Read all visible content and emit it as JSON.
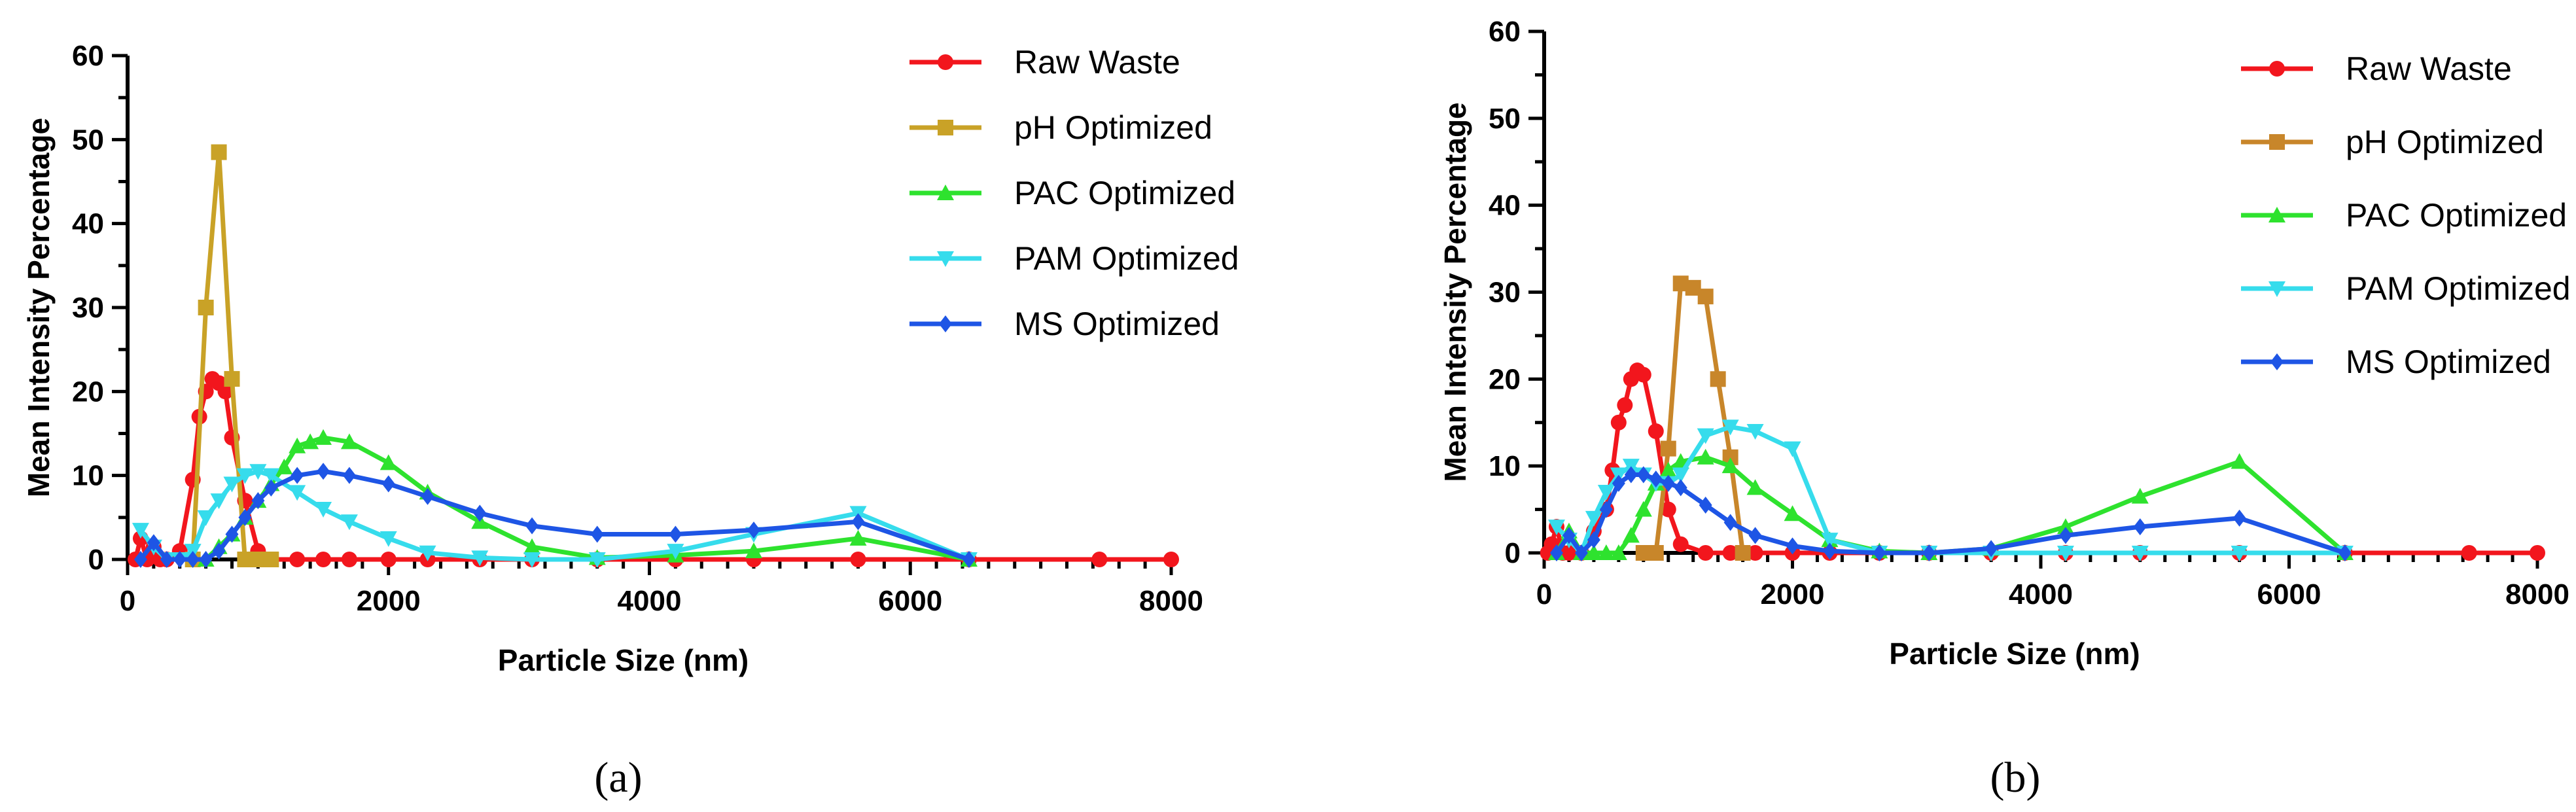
{
  "chart_data": [
    {
      "type": "line",
      "panel": "a",
      "panel_label": "(a)",
      "xlabel": "Particle Size (nm)",
      "ylabel": "Mean Intensity Percentage",
      "xlim": [
        0,
        8000
      ],
      "ylim": [
        0,
        60
      ],
      "xticks": [
        0,
        2000,
        4000,
        6000,
        8000
      ],
      "yticks": [
        0,
        10,
        20,
        30,
        40,
        50,
        60
      ],
      "legend_position": "top-right",
      "series": [
        {
          "name": "Raw Waste",
          "color": "#f2161d",
          "marker": "circle",
          "x": [
            60,
            100,
            150,
            200,
            250,
            300,
            400,
            500,
            550,
            600,
            650,
            700,
            750,
            800,
            900,
            1000,
            1100,
            1300,
            1500,
            1700,
            2000,
            2300,
            2700,
            3100,
            3600,
            4200,
            4800,
            5600,
            6450,
            7450,
            8000
          ],
          "y": [
            0,
            2.5,
            0,
            1.5,
            0,
            0,
            1,
            9.5,
            17,
            20,
            21.5,
            21,
            20,
            14.5,
            7,
            1,
            0,
            0,
            0,
            0,
            0,
            0,
            0,
            0,
            0,
            0,
            0,
            0,
            0,
            0,
            0
          ]
        },
        {
          "name": "pH Optimized",
          "color": "#c9a227",
          "marker": "square",
          "x": [
            500,
            600,
            700,
            800,
            900,
            1000,
            1100
          ],
          "y": [
            0,
            30,
            48.5,
            21.5,
            0,
            0,
            0
          ]
        },
        {
          "name": "PAC Optimized",
          "color": "#2ee22e",
          "marker": "triangle-up",
          "x": [
            600,
            700,
            800,
            900,
            1000,
            1100,
            1200,
            1300,
            1400,
            1500,
            1700,
            2000,
            2300,
            2700,
            3100,
            3600,
            4200,
            4800,
            5600,
            6450
          ],
          "y": [
            0,
            1.5,
            3,
            5,
            7,
            9,
            11,
            13.5,
            14,
            14.5,
            14,
            11.5,
            8,
            4.5,
            1.5,
            0.2,
            0.5,
            1,
            2.5,
            0
          ]
        },
        {
          "name": "PAM Optimized",
          "color": "#36dcec",
          "marker": "triangle-down",
          "x": [
            100,
            200,
            300,
            400,
            500,
            600,
            700,
            800,
            900,
            1000,
            1100,
            1300,
            1500,
            1700,
            2000,
            2300,
            2700,
            3100,
            3600,
            4200,
            4800,
            5600,
            6450
          ],
          "y": [
            3.5,
            1.5,
            0,
            0,
            1,
            5,
            7,
            9,
            10,
            10.5,
            10,
            8,
            6,
            4.5,
            2.5,
            0.8,
            0.2,
            0,
            0,
            1,
            3,
            5.5,
            0
          ]
        },
        {
          "name": "MS Optimized",
          "color": "#1e55e5",
          "marker": "diamond",
          "x": [
            100,
            200,
            300,
            400,
            500,
            600,
            700,
            800,
            900,
            1000,
            1100,
            1300,
            1500,
            1700,
            2000,
            2300,
            2700,
            3100,
            3600,
            4200,
            4800,
            5600,
            6450
          ],
          "y": [
            0,
            2,
            0,
            0,
            0,
            0,
            1,
            3,
            5,
            7,
            8.5,
            10,
            10.5,
            10,
            9,
            7.5,
            5.5,
            4,
            3,
            3,
            3.5,
            4.5,
            0
          ]
        }
      ]
    },
    {
      "type": "line",
      "panel": "b",
      "panel_label": "(b)",
      "xlabel": "Particle Size (nm)",
      "ylabel": "Mean Intensity Percentage",
      "xlim": [
        0,
        8000
      ],
      "ylim": [
        0,
        60
      ],
      "xticks": [
        0,
        2000,
        4000,
        6000,
        8000
      ],
      "yticks": [
        0,
        10,
        20,
        30,
        40,
        50,
        60
      ],
      "legend_position": "top-right",
      "series": [
        {
          "name": "Raw Waste",
          "color": "#f2161d",
          "marker": "circle",
          "x": [
            30,
            60,
            100,
            150,
            200,
            300,
            400,
            500,
            550,
            600,
            650,
            700,
            750,
            800,
            900,
            1000,
            1100,
            1300,
            1500,
            1700,
            2000,
            2300,
            2700,
            3100,
            3600,
            4200,
            4800,
            5600,
            6450,
            7450,
            8000
          ],
          "y": [
            0,
            1,
            3,
            0,
            0,
            0,
            2.5,
            5,
            9.5,
            15,
            17,
            20,
            21,
            20.5,
            14,
            5,
            1,
            0,
            0,
            0,
            0,
            0,
            0,
            0,
            0,
            0,
            0,
            0,
            0,
            0,
            0
          ]
        },
        {
          "name": "pH Optimized",
          "color": "#c8862a",
          "marker": "square",
          "x": [
            800,
            900,
            1000,
            1100,
            1200,
            1300,
            1400,
            1500,
            1600
          ],
          "y": [
            0,
            0,
            12,
            31,
            30.5,
            29.5,
            20,
            11,
            0
          ]
        },
        {
          "name": "PAC Optimized",
          "color": "#2ee22e",
          "marker": "triangle-up",
          "x": [
            100,
            200,
            300,
            400,
            500,
            600,
            700,
            800,
            900,
            1000,
            1100,
            1300,
            1500,
            1700,
            2000,
            2300,
            2700,
            3100,
            3600,
            4200,
            4800,
            5600,
            6450
          ],
          "y": [
            0,
            2.5,
            0,
            0,
            0,
            0,
            2,
            5,
            8,
            9.5,
            10.5,
            11,
            10,
            7.5,
            4.5,
            1.5,
            0.2,
            0,
            0.5,
            3,
            6.5,
            10.5,
            0
          ]
        },
        {
          "name": "PAM Optimized",
          "color": "#36dcec",
          "marker": "triangle-down",
          "x": [
            100,
            200,
            300,
            400,
            500,
            600,
            700,
            800,
            900,
            1000,
            1100,
            1300,
            1500,
            1700,
            2000,
            2300,
            2700,
            3100,
            3600,
            4200,
            4800,
            5600,
            6450
          ],
          "y": [
            3,
            1.5,
            0,
            4,
            7,
            9,
            10,
            9,
            8,
            8,
            9,
            13.5,
            14.5,
            14,
            12,
            1.5,
            0,
            0,
            0,
            0,
            0,
            0,
            0
          ]
        },
        {
          "name": "MS Optimized",
          "color": "#1e55e5",
          "marker": "diamond",
          "x": [
            100,
            200,
            300,
            400,
            500,
            600,
            700,
            800,
            900,
            1000,
            1100,
            1300,
            1500,
            1700,
            2000,
            2300,
            2700,
            3100,
            3600,
            4200,
            4800,
            5600,
            6450
          ],
          "y": [
            0,
            2,
            0,
            1.5,
            5,
            8,
            9,
            9,
            8.5,
            8,
            7.5,
            5.5,
            3.5,
            2,
            0.8,
            0.2,
            0,
            0,
            0.5,
            2,
            3,
            4,
            0
          ]
        }
      ]
    }
  ]
}
